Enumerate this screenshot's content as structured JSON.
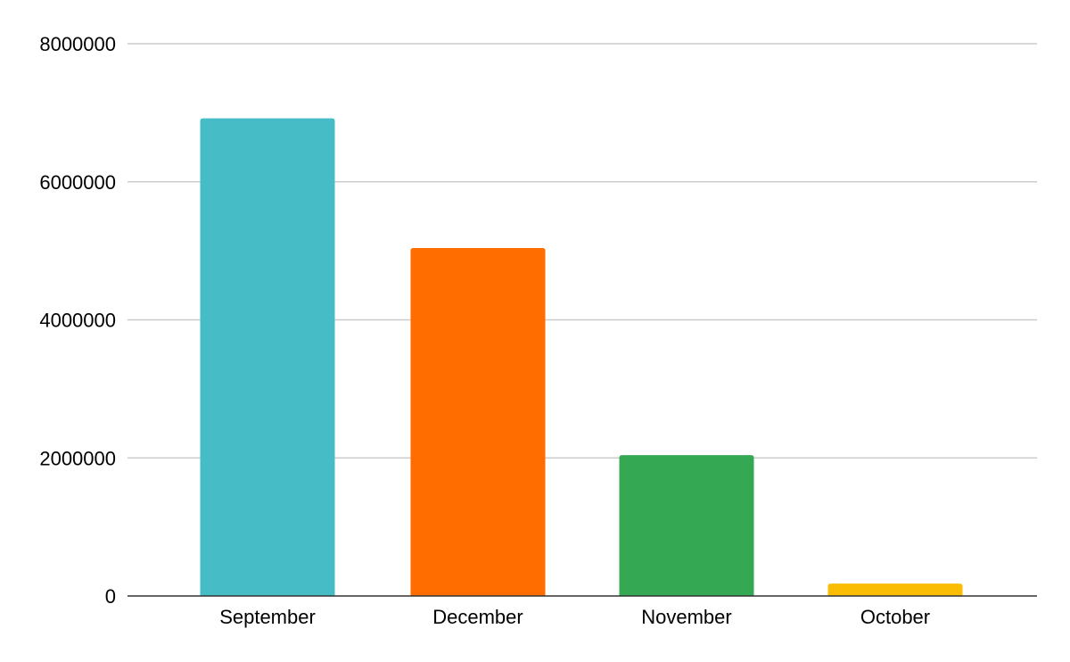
{
  "chart_data": {
    "type": "bar",
    "title": "",
    "xlabel": "",
    "ylabel": "",
    "categories": [
      "September",
      "December",
      "November",
      "October"
    ],
    "values": [
      6920000,
      5040000,
      2040000,
      180000
    ],
    "colors": [
      "#46bdc6",
      "#ff6d01",
      "#34a853",
      "#fbbc04"
    ],
    "ylim": [
      0,
      8000000
    ],
    "yticks": [
      0,
      2000000,
      4000000,
      6000000,
      8000000
    ],
    "ytick_labels": [
      "0",
      "2000000",
      "4000000",
      "6000000",
      "8000000"
    ],
    "grid": true,
    "legend": "none"
  }
}
